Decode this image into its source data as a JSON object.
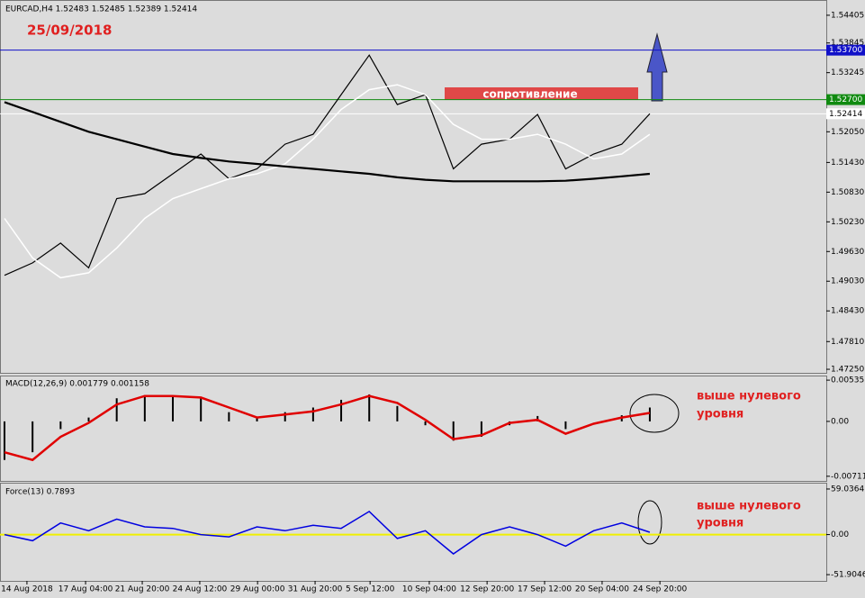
{
  "chart_data": [
    {
      "type": "line",
      "title": "EURCAD,H4 1.52483 1.52485 1.52389 1.52414",
      "subtitle": "25/09/2018",
      "annotation": "сопротивление",
      "xlim": [
        -0.16,
        29.29
      ],
      "ylim": [
        1.47178,
        1.54695
      ],
      "yticks": [
        1.54405,
        1.53845,
        1.53245,
        {
          "value": 1.5205,
          "label": "1.52050"
        },
        {
          "value": 1.5143,
          "label": "1.51430"
        },
        {
          "value": 1.5083,
          "label": "1.50830"
        },
        {
          "value": 1.5023,
          "label": "1.50230"
        },
        {
          "value": 1.4963,
          "label": "1.49630"
        },
        {
          "value": 1.4903,
          "label": "1.49030"
        },
        {
          "value": 1.4843,
          "label": "1.48430"
        },
        {
          "value": 1.4781,
          "label": "1.47810"
        },
        {
          "value": 1.4725,
          "label": "1.47250"
        }
      ],
      "levels": [
        {
          "value": 1.537,
          "label": "1.53700",
          "color": "#1010c8"
        },
        {
          "value": 1.527,
          "label": "1.52700",
          "color": "#108a10"
        },
        {
          "value": 1.52414,
          "label": "1.52414",
          "color": "#ffffff"
        }
      ],
      "series": [
        {
          "color": "#000000",
          "width": 1.2,
          "values": [
            1.4915,
            1.494,
            1.498,
            1.493,
            1.507,
            1.508,
            1.512,
            1.516,
            1.511,
            1.513,
            1.518,
            1.52,
            1.528,
            1.536,
            1.526,
            1.528,
            1.513,
            1.518,
            1.519,
            1.524,
            1.513,
            1.516,
            1.518,
            1.52414
          ]
        },
        {
          "color": "#ffffff",
          "width": 1.5,
          "values": [
            1.503,
            1.495,
            1.491,
            1.492,
            1.497,
            1.503,
            1.507,
            1.509,
            1.511,
            1.512,
            1.514,
            1.519,
            1.525,
            1.529,
            1.53,
            1.528,
            1.522,
            1.519,
            1.519,
            1.52,
            1.518,
            1.515,
            1.516,
            1.52
          ]
        },
        {
          "color": "#000000",
          "width": 2.2,
          "values": [
            1.5265,
            1.5245,
            1.5225,
            1.5205,
            1.519,
            1.5175,
            1.516,
            1.5152,
            1.5145,
            1.514,
            1.5135,
            1.513,
            1.5125,
            1.512,
            1.5113,
            1.5108,
            1.5105,
            1.5105,
            1.5105,
            1.5105,
            1.5106,
            1.511,
            1.5115,
            1.512
          ]
        }
      ]
    },
    {
      "type": "macd",
      "title": "MACD(12,26,9) 0.001779 0.001158",
      "annotation": [
        "выше нулевого",
        "уровня"
      ],
      "xlim": [
        -0.16,
        29.29
      ],
      "ylim": [
        -0.00772,
        0.00583
      ],
      "yticks": [
        0.005351,
        {
          "value": 0,
          "label": "0.00"
        },
        -0.007115
      ],
      "series": [
        {
          "color": "#000000",
          "values": [
            -0.005,
            -0.004,
            -0.001,
            0.0005,
            0.003,
            0.0034,
            0.0032,
            0.003,
            0.0012,
            0.0005,
            0.0012,
            0.0018,
            0.0028,
            0.0035,
            0.002,
            -0.0005,
            -0.0025,
            -0.002,
            -0.0005,
            0.0007,
            -0.001,
            0,
            0.0008,
            0.0018
          ]
        },
        {
          "color": "#e00000",
          "values": [
            -0.004,
            -0.005,
            -0.002,
            -0.0002,
            0.0022,
            0.0033,
            0.0033,
            0.0031,
            0.0018,
            0.0005,
            0.0009,
            0.0013,
            0.0022,
            0.0033,
            0.0024,
            0.0002,
            -0.0023,
            -0.0018,
            -0.0002,
            0.0002,
            -0.0016,
            -0.0003,
            0.0005,
            0.0011
          ]
        }
      ]
    },
    {
      "type": "force",
      "title": "Force(13) 0.7893",
      "annotation": [
        "выше нулевого",
        "уровня"
      ],
      "xlim": [
        -0.16,
        29.29
      ],
      "ylim": [
        -60,
        66
      ],
      "yticks": [
        59.0364,
        {
          "value": 0,
          "label": "0.00"
        },
        -51.9046
      ],
      "zero_color": "#f0f000",
      "xticks": [
        {
          "value": 0.8,
          "label": "14 Aug 2018"
        },
        {
          "value": 2.89,
          "label": "17 Aug 04:00"
        },
        {
          "value": 4.91,
          "label": "21 Aug 20:00"
        },
        {
          "value": 6.96,
          "label": "24 Aug 12:00"
        },
        {
          "value": 9.02,
          "label": "29 Aug 00:00"
        },
        {
          "value": 11.07,
          "label": "31 Aug 20:00"
        },
        {
          "value": 13.03,
          "label": "5 Sep 12:00"
        },
        {
          "value": 15.14,
          "label": "10 Sep 04:00"
        },
        {
          "value": 17.2,
          "label": "12 Sep 20:00"
        },
        {
          "value": 19.25,
          "label": "17 Sep 12:00"
        },
        {
          "value": 21.3,
          "label": "20 Sep 04:00"
        },
        {
          "value": 23.36,
          "label": "24 Sep 20:00"
        }
      ],
      "series": [
        {
          "color": "#0000e0",
          "values": [
            0,
            -8,
            15,
            5,
            20,
            10,
            8,
            0,
            -3,
            10,
            5,
            12,
            8,
            30,
            -5,
            5,
            -25,
            0,
            10,
            0,
            -15,
            5,
            15,
            3
          ]
        }
      ]
    }
  ]
}
